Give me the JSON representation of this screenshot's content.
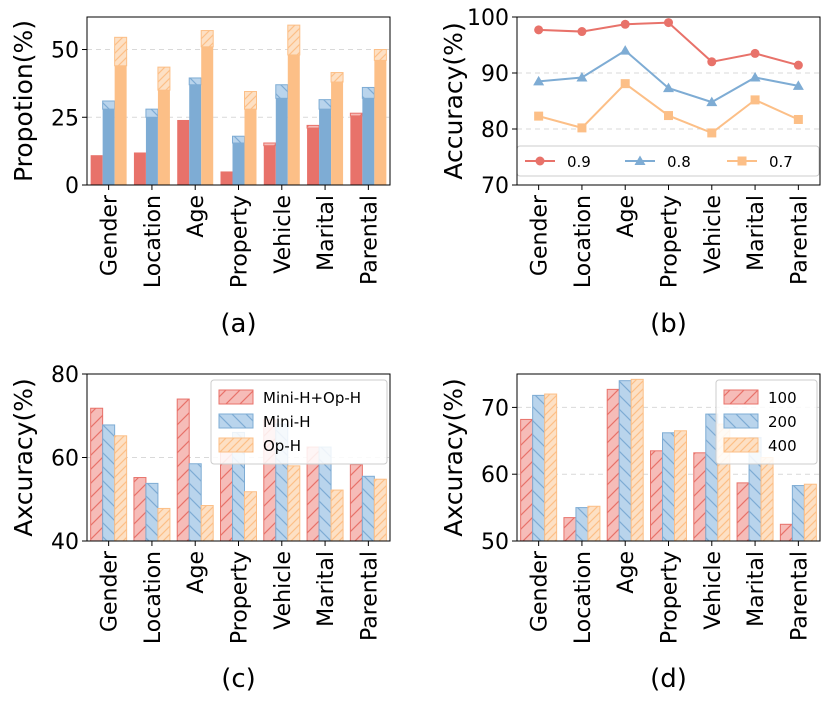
{
  "categories": [
    "Gender",
    "Location",
    "Age",
    "Property",
    "Vehicle",
    "Marital",
    "Parental"
  ],
  "chart_data": [
    {
      "id": "a",
      "type": "bar",
      "caption": "(a)",
      "ylabel": "Propotion(%)",
      "ylim": [
        0,
        62
      ],
      "yticks": [
        0,
        25,
        50
      ],
      "grid": true,
      "series": [
        {
          "name": "red",
          "color": "#e8726a",
          "values": [
            11,
            12,
            24,
            5,
            14.5,
            21,
            25.5
          ],
          "hatched_extra": [
            0,
            0,
            0,
            0,
            1,
            1,
            1
          ]
        },
        {
          "name": "blue",
          "color": "#7eacd4",
          "values": [
            28,
            25,
            37,
            15.5,
            32,
            28,
            32
          ],
          "hatched_extra": [
            3,
            3,
            2.5,
            2.5,
            5,
            3.5,
            4
          ]
        },
        {
          "name": "orange",
          "color": "#fcbf87",
          "values": [
            44,
            35,
            51,
            28,
            48,
            38,
            46
          ],
          "hatched_extra": [
            10.5,
            8.5,
            6,
            6.5,
            11,
            3.5,
            4
          ]
        }
      ]
    },
    {
      "id": "b",
      "type": "line",
      "caption": "(b)",
      "ylabel": "Accuracy(%)",
      "ylim": [
        70,
        100
      ],
      "yticks": [
        70,
        80,
        90,
        100
      ],
      "grid": true,
      "legend": "lower-center",
      "series": [
        {
          "name": "0.9",
          "marker": "circle",
          "color": "#e8726a",
          "values": [
            97.7,
            97.4,
            98.7,
            99,
            92,
            93.5,
            91.4
          ]
        },
        {
          "name": "0.8",
          "marker": "triangle",
          "color": "#7eacd4",
          "values": [
            88.5,
            89.2,
            94,
            87.3,
            84.8,
            89.2,
            87.7
          ]
        },
        {
          "name": "0.7",
          "marker": "square",
          "color": "#fcbf87",
          "values": [
            82.3,
            80.2,
            88.1,
            82.4,
            79.3,
            85.2,
            81.7
          ]
        }
      ]
    },
    {
      "id": "c",
      "type": "bar",
      "caption": "(c)",
      "ylabel": "Axcuracy(%)",
      "ylim": [
        40,
        80
      ],
      "yticks": [
        40,
        60,
        80
      ],
      "grid": true,
      "legend": "top-right",
      "series": [
        {
          "name": "Mini-H+Op-H",
          "color": "#e8726a",
          "fill": "#f6bcb8",
          "hatch": "right",
          "values": [
            71.8,
            55.2,
            74,
            63,
            69,
            62.5,
            58.3
          ]
        },
        {
          "name": "Mini-H",
          "color": "#7eacd4",
          "fill": "#b9d4ec",
          "hatch": "left",
          "values": [
            67.8,
            53.8,
            58.5,
            66,
            68,
            62.5,
            55.5
          ]
        },
        {
          "name": "Op-H",
          "color": "#fcbf87",
          "fill": "#fde0c4",
          "hatch": "right",
          "values": [
            65.2,
            47.8,
            48.5,
            51.8,
            58,
            52.2,
            54.8
          ]
        }
      ]
    },
    {
      "id": "d",
      "type": "bar",
      "caption": "(d)",
      "ylabel": "Axcuracy(%)",
      "ylim": [
        50,
        75
      ],
      "yticks": [
        50,
        60,
        70
      ],
      "grid": true,
      "legend": "top-right",
      "series": [
        {
          "name": "100",
          "color": "#e8726a",
          "fill": "#f6bcb8",
          "hatch": "right",
          "values": [
            68.2,
            53.5,
            72.7,
            63.5,
            63.2,
            58.7,
            52.5
          ]
        },
        {
          "name": "200",
          "color": "#7eacd4",
          "fill": "#b9d4ec",
          "hatch": "left",
          "values": [
            71.8,
            55,
            74,
            66.2,
            69,
            65.5,
            58.3
          ]
        },
        {
          "name": "400",
          "color": "#fcbf87",
          "fill": "#fde0c4",
          "hatch": "right",
          "values": [
            72,
            55.2,
            74.2,
            66.5,
            67.5,
            62.5,
            58.5
          ]
        }
      ]
    }
  ]
}
